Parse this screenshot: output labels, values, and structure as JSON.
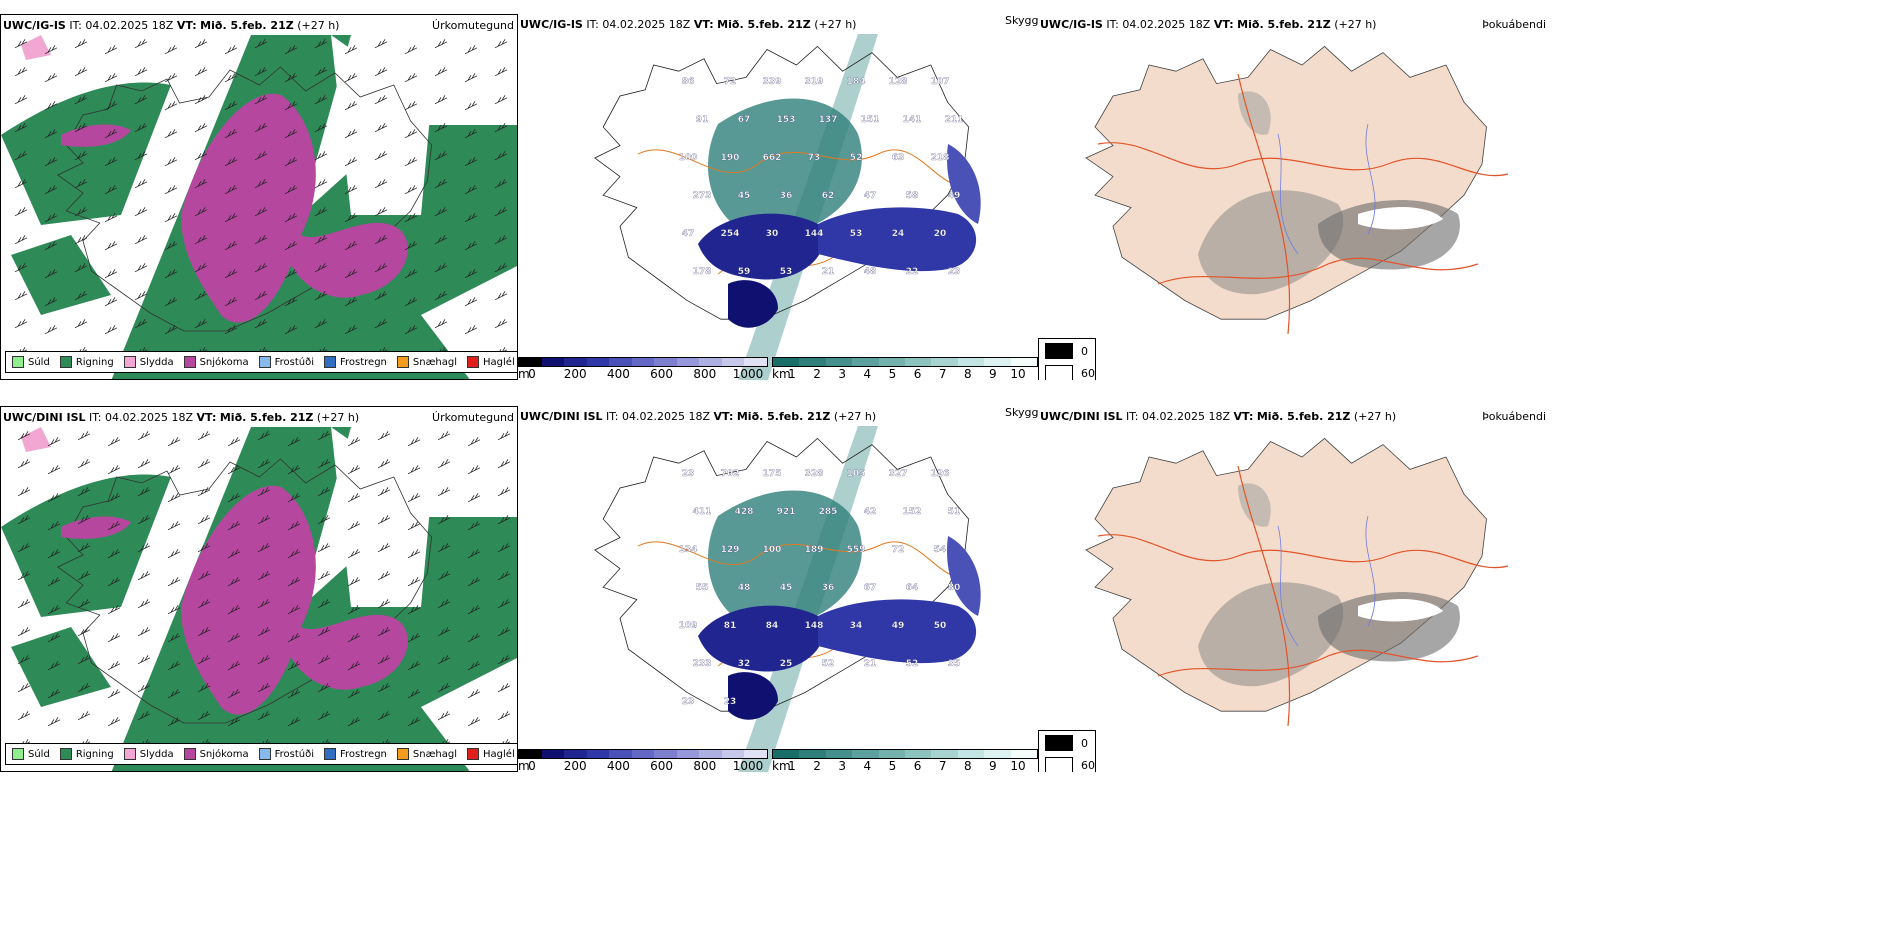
{
  "rows": [
    {
      "id": "igis",
      "model": "UWC/IG-IS",
      "it_label": "IT:",
      "it_value": "04.02.2025 18Z",
      "vt_label": "VT:",
      "vt_value": "Mið. 5.feb. 21Z",
      "lead": "(+27 h)",
      "cloud_labels": [
        "86",
        "72",
        "339",
        "319",
        "184",
        "128",
        "107",
        "91",
        "67",
        "153",
        "137",
        "151",
        "141",
        "211",
        "100",
        "190",
        "662",
        "73",
        "52",
        "63",
        "218",
        "273",
        "45",
        "36",
        "62",
        "47",
        "58",
        "49",
        "47",
        "254",
        "30",
        "144",
        "53",
        "24",
        "20",
        "178",
        "59",
        "53",
        "21",
        "48",
        "22",
        "23"
      ]
    },
    {
      "id": "dini",
      "model": "UWC/DINI ISL",
      "it_label": "IT:",
      "it_value": "04.02.2025 18Z",
      "vt_label": "VT:",
      "vt_value": "Mið. 5.feb. 21Z",
      "lead": "(+27 h)",
      "cloud_labels": [
        "23",
        "702",
        "175",
        "328",
        "105",
        "327",
        "126",
        "411",
        "428",
        "921",
        "285",
        "42",
        "152",
        "51",
        "134",
        "129",
        "100",
        "189",
        "559",
        "72",
        "54",
        "55",
        "48",
        "45",
        "36",
        "67",
        "64",
        "80",
        "109",
        "81",
        "84",
        "148",
        "34",
        "49",
        "50",
        "233",
        "32",
        "25",
        "52",
        "21",
        "52",
        "35",
        "23",
        "23"
      ]
    }
  ],
  "panel_titles": {
    "precip": "Úrkomutegund",
    "cloud": "Skyggni",
    "fog": "Þokuábendi"
  },
  "precip_legend": [
    {
      "label": "Súld",
      "color": "#90ee90"
    },
    {
      "label": "Rigning",
      "color": "#2e8b57"
    },
    {
      "label": "Slydda",
      "color": "#f2a6d2"
    },
    {
      "label": "Snjókoma",
      "color": "#b5479f"
    },
    {
      "label": "Frostúði",
      "color": "#87b9ec"
    },
    {
      "label": "Frostregn",
      "color": "#2f6fc0"
    },
    {
      "label": "Snæhagl",
      "color": "#f39c1f"
    },
    {
      "label": "Haglél",
      "color": "#e0201e"
    }
  ],
  "base_colorbar": {
    "unit": "m",
    "ticks": [
      "0",
      "200",
      "400",
      "600",
      "800",
      "1000"
    ],
    "colors": [
      "#000000",
      "#101070",
      "#202590",
      "#3038a8",
      "#4a52b8",
      "#6368c4",
      "#7c80cf",
      "#9598da",
      "#aeb0e3",
      "#c6c8ec",
      "#e0e1f5"
    ]
  },
  "vis_colorbar": {
    "unit": "km",
    "ticks": [
      "1",
      "2",
      "3",
      "4",
      "5",
      "6",
      "7",
      "8",
      "9",
      "10"
    ],
    "colors": [
      "#1a6e6a",
      "#2f7f7b",
      "#45908c",
      "#5ca19d",
      "#74b2ae",
      "#8dc3bf",
      "#a7d4d1",
      "#c2e4e2",
      "#dcf1f0",
      "#f4fbfb"
    ]
  },
  "fog_legend": [
    {
      "value": "0",
      "color": "#000000"
    },
    {
      "value": "60",
      "color": "#ffffff"
    }
  ]
}
